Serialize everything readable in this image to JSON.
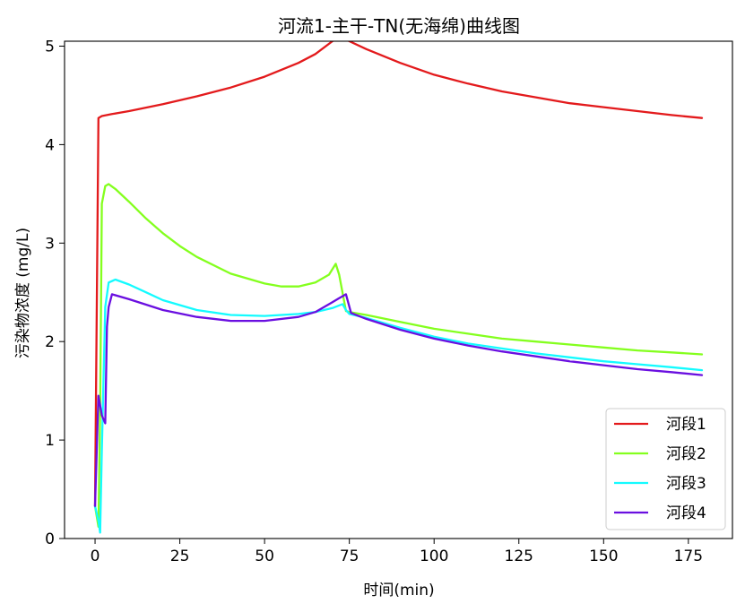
{
  "chart_data": {
    "type": "line",
    "title": "河流1-主干-TN(无海绵)曲线图",
    "xlabel": "时间(min)",
    "ylabel": "污染物浓度 (mg/L)",
    "xlim": [
      -9,
      188
    ],
    "ylim": [
      0,
      5.05
    ],
    "xticks": [
      0,
      25,
      50,
      75,
      100,
      125,
      150,
      175
    ],
    "yticks": [
      0,
      1,
      2,
      3,
      4,
      5
    ],
    "grid": false,
    "legend_position": "lower-right",
    "series": [
      {
        "name": "河段1",
        "color": "#e31a1c",
        "x": [
          0,
          1,
          2,
          5,
          10,
          20,
          30,
          40,
          50,
          60,
          65,
          70,
          72,
          75,
          80,
          90,
          100,
          110,
          120,
          130,
          140,
          150,
          160,
          170,
          179
        ],
        "y": [
          0.33,
          4.27,
          4.29,
          4.31,
          4.34,
          4.41,
          4.49,
          4.58,
          4.69,
          4.83,
          4.92,
          5.05,
          5.1,
          5.05,
          4.97,
          4.83,
          4.71,
          4.62,
          4.54,
          4.48,
          4.42,
          4.38,
          4.34,
          4.3,
          4.27
        ]
      },
      {
        "name": "河段2",
        "color": "#84ff1e",
        "x": [
          0,
          1,
          1.5,
          2,
          3,
          4,
          6,
          10,
          15,
          20,
          25,
          30,
          40,
          50,
          55,
          60,
          65,
          69,
          71,
          72,
          74,
          75,
          80,
          90,
          100,
          110,
          120,
          130,
          140,
          150,
          160,
          170,
          179
        ],
        "y": [
          0.33,
          0.12,
          1.3,
          3.4,
          3.58,
          3.6,
          3.55,
          3.42,
          3.25,
          3.1,
          2.97,
          2.86,
          2.69,
          2.59,
          2.56,
          2.56,
          2.6,
          2.68,
          2.79,
          2.68,
          2.31,
          2.3,
          2.27,
          2.2,
          2.13,
          2.08,
          2.03,
          2.0,
          1.97,
          1.94,
          1.91,
          1.89,
          1.87
        ]
      },
      {
        "name": "河段3",
        "color": "#14fbff",
        "x": [
          0,
          1,
          1.5,
          2,
          3,
          4,
          6,
          10,
          15,
          20,
          30,
          40,
          50,
          60,
          65,
          70,
          73,
          74,
          75,
          80,
          90,
          100,
          110,
          120,
          130,
          140,
          150,
          160,
          170,
          179
        ],
        "y": [
          0.33,
          0.18,
          0.06,
          0.9,
          2.35,
          2.6,
          2.63,
          2.58,
          2.5,
          2.42,
          2.32,
          2.27,
          2.26,
          2.28,
          2.3,
          2.34,
          2.38,
          2.32,
          2.28,
          2.24,
          2.14,
          2.05,
          1.98,
          1.93,
          1.88,
          1.84,
          1.8,
          1.77,
          1.74,
          1.71
        ]
      },
      {
        "name": "河段4",
        "color": "#6a0fe0",
        "x": [
          0,
          1,
          2,
          3,
          3.5,
          4,
          5,
          10,
          20,
          30,
          40,
          50,
          60,
          65,
          70,
          72,
          74,
          75.5,
          80,
          90,
          100,
          110,
          120,
          130,
          140,
          150,
          160,
          170,
          179
        ],
        "y": [
          0.33,
          1.45,
          1.25,
          1.17,
          2.15,
          2.35,
          2.48,
          2.43,
          2.32,
          2.25,
          2.21,
          2.21,
          2.25,
          2.3,
          2.4,
          2.44,
          2.48,
          2.29,
          2.23,
          2.12,
          2.03,
          1.96,
          1.9,
          1.85,
          1.8,
          1.76,
          1.72,
          1.69,
          1.66
        ]
      }
    ]
  }
}
